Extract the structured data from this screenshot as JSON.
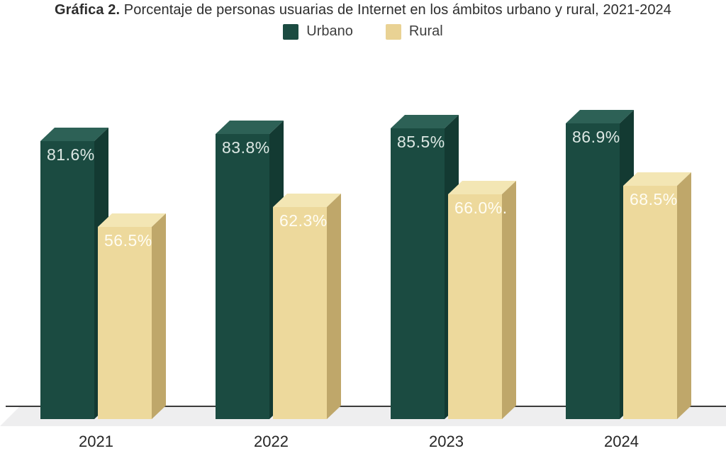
{
  "title": {
    "prefix": "Gráfica 2.",
    "suffix": " Porcentaje de personas usuarias de Internet en los ámbitos urbano y rural, 2021-2024"
  },
  "legend": {
    "items": [
      {
        "label": "Urbano",
        "color": "#1b4b41"
      },
      {
        "label": "Rural",
        "color": "#e9d294"
      }
    ]
  },
  "colors": {
    "urbano_front": "#1b4b41",
    "urbano_top": "#2d6156",
    "urbano_side": "#133a32",
    "urbano_value_label": "#dde8e4",
    "rural_front": "#edd99c",
    "rural_top": "#f3e6b4",
    "rural_side": "#bfa76a",
    "rural_value_label": "#fffdf3",
    "axis_line": "#3b3b3b",
    "floor": "#eeeeef",
    "title_text": "#2d2d2d",
    "year_label": "#262626"
  },
  "chart_data": {
    "type": "bar",
    "style": "3d-column-pairs",
    "title": "Gráfica 2. Porcentaje de personas usuarias de Internet en los ámbitos urbano y rural, 2021-2024",
    "categories": [
      "2021",
      "2022",
      "2023",
      "2024"
    ],
    "series": [
      {
        "name": "Urbano",
        "values": [
          81.6,
          83.8,
          85.5,
          86.9
        ],
        "labels": [
          "81.6%",
          "83.8%",
          "85.5%",
          "86.9%"
        ]
      },
      {
        "name": "Rural",
        "values": [
          56.5,
          62.3,
          66.0,
          68.5
        ],
        "labels": [
          "56.5%",
          "62.3%",
          "66.0%.",
          "68.5%"
        ]
      }
    ],
    "xlabel": "",
    "ylabel": "",
    "ylim": [
      0,
      100
    ],
    "grid": false,
    "legend_position": "top-center",
    "value_labels": "inside-top-left"
  }
}
